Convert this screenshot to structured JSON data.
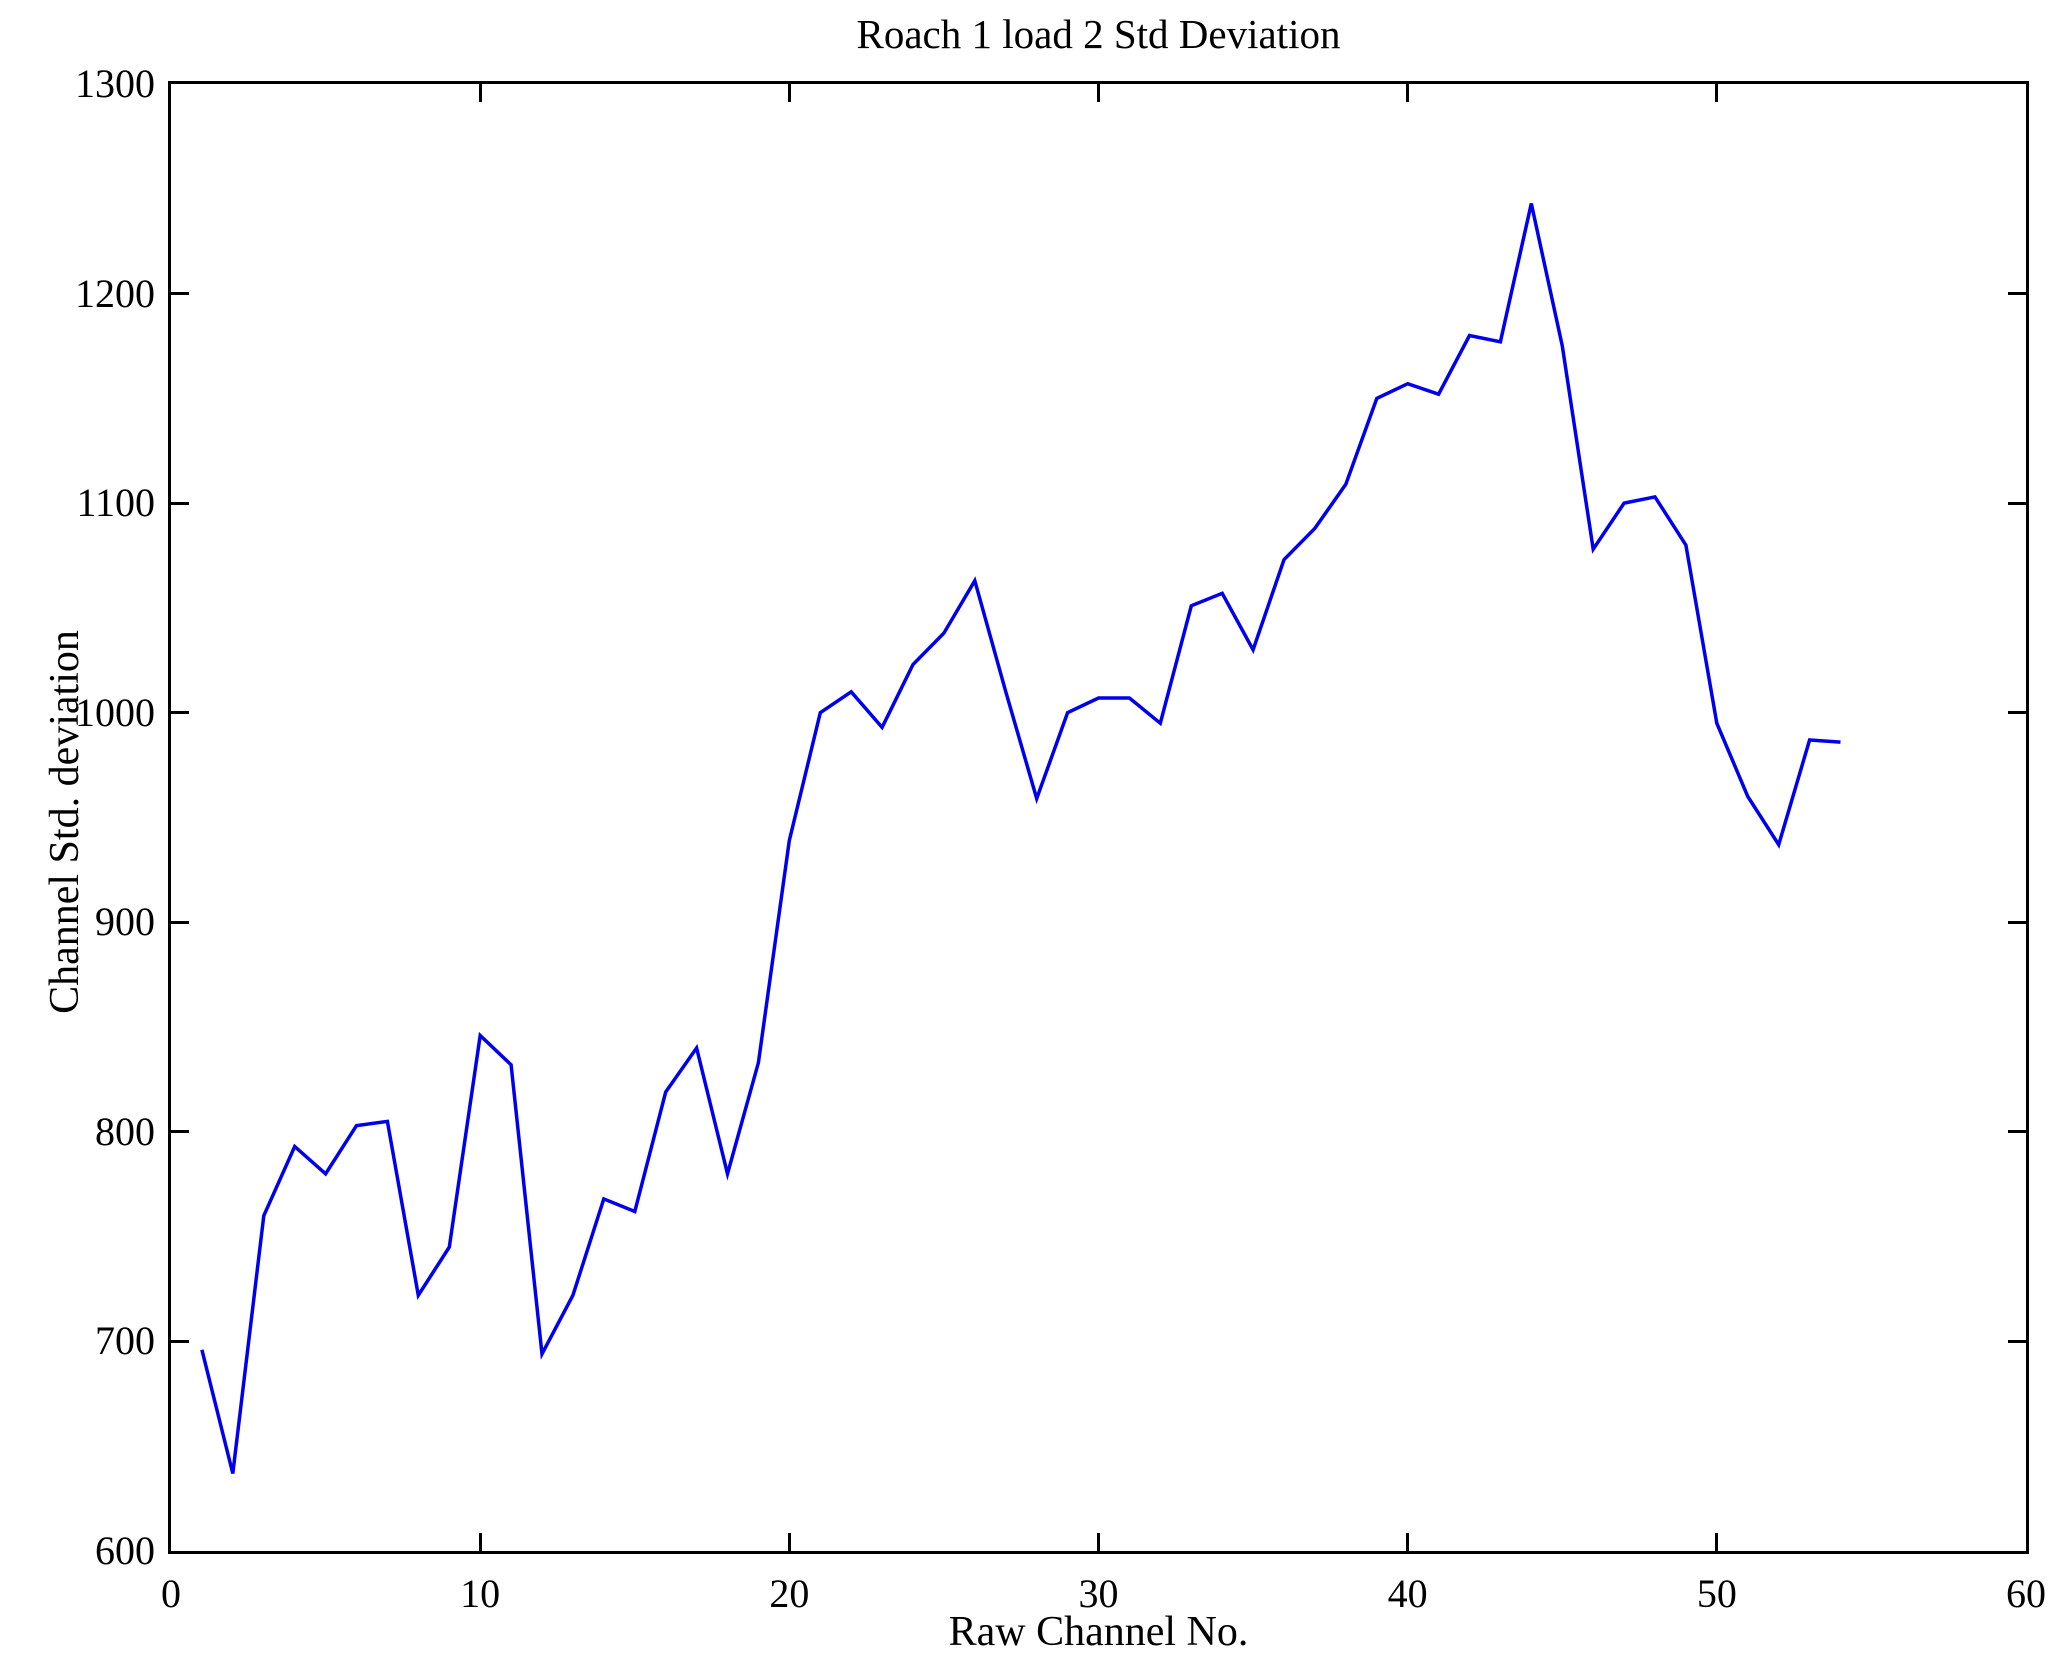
{
  "chart_data": {
    "type": "line",
    "title": "Roach 1 load 2 Std Deviation",
    "xlabel": "Raw Channel No.",
    "ylabel": "Channel Std. deviation",
    "xlim": [
      0,
      60
    ],
    "ylim": [
      600,
      1300
    ],
    "xticks": [
      0,
      10,
      20,
      30,
      40,
      50,
      60
    ],
    "yticks": [
      600,
      700,
      800,
      900,
      1000,
      1100,
      1200,
      1300
    ],
    "grid": false,
    "legend": null,
    "line_color": "#0000EE",
    "x": [
      1,
      2,
      3,
      4,
      5,
      6,
      7,
      8,
      9,
      10,
      11,
      12,
      13,
      14,
      15,
      16,
      17,
      18,
      19,
      20,
      21,
      22,
      23,
      24,
      25,
      26,
      27,
      28,
      29,
      30,
      31,
      32,
      33,
      34,
      35,
      36,
      37,
      38,
      39,
      40,
      41,
      42,
      43,
      44,
      45,
      46,
      47,
      48,
      49,
      50,
      51,
      52,
      53,
      54
    ],
    "values": [
      696,
      637,
      760,
      793,
      780,
      803,
      805,
      722,
      745,
      846,
      832,
      694,
      722,
      768,
      762,
      819,
      840,
      780,
      833,
      939,
      1000,
      1010,
      993,
      1023,
      1038,
      1063,
      1010,
      959,
      1000,
      1007,
      1007,
      995,
      1051,
      1057,
      1030,
      1073,
      1088,
      1109,
      1150,
      1157,
      1152,
      1180,
      1177,
      1243,
      1175,
      1078,
      1100,
      1103,
      1080,
      995,
      960,
      937,
      987,
      986
    ]
  }
}
